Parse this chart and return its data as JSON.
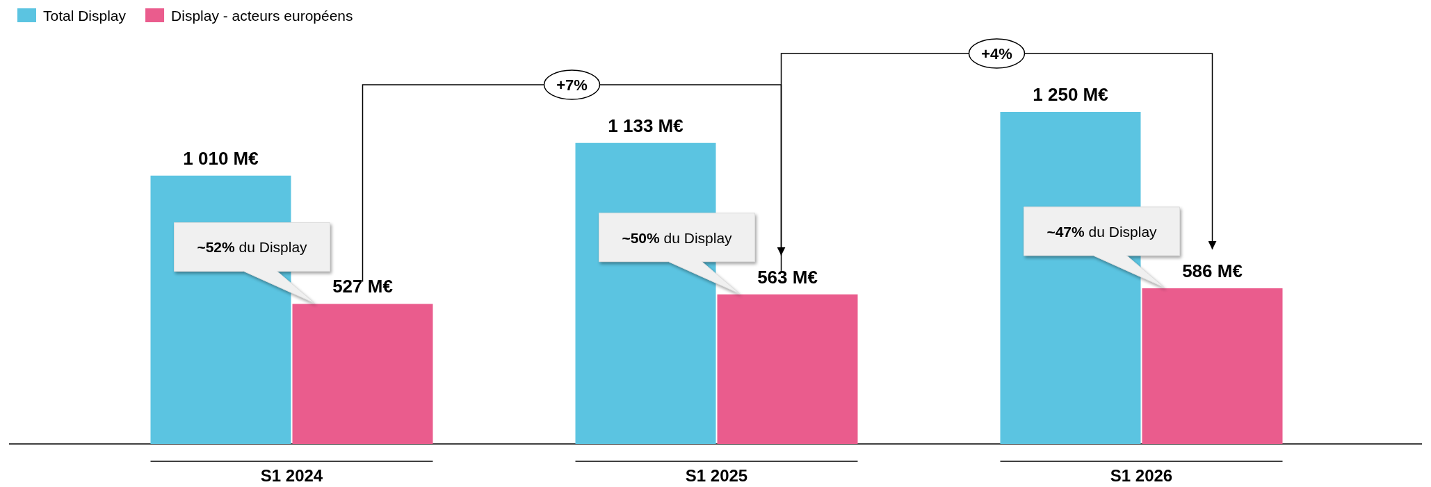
{
  "chart_data": {
    "type": "bar",
    "categories": [
      "S1 2024",
      "S1 2025",
      "S1 2026"
    ],
    "series": [
      {
        "name": "Total Display",
        "color": "#5bc4e1",
        "values": [
          1010,
          1133,
          1250
        ],
        "value_labels": [
          "1 010 M€",
          "1 133 M€",
          "1 250 M€"
        ]
      },
      {
        "name": "Display - acteurs européens",
        "color": "#ea5c8d",
        "values": [
          527,
          563,
          586
        ],
        "value_labels": [
          "527 M€",
          "563 M€",
          "586 M€"
        ]
      }
    ],
    "legend": "top left",
    "annotations": [
      "~52% du Display",
      "~50% du Display",
      "~47% du Display",
      "+7%",
      "+4%"
    ]
  }
}
